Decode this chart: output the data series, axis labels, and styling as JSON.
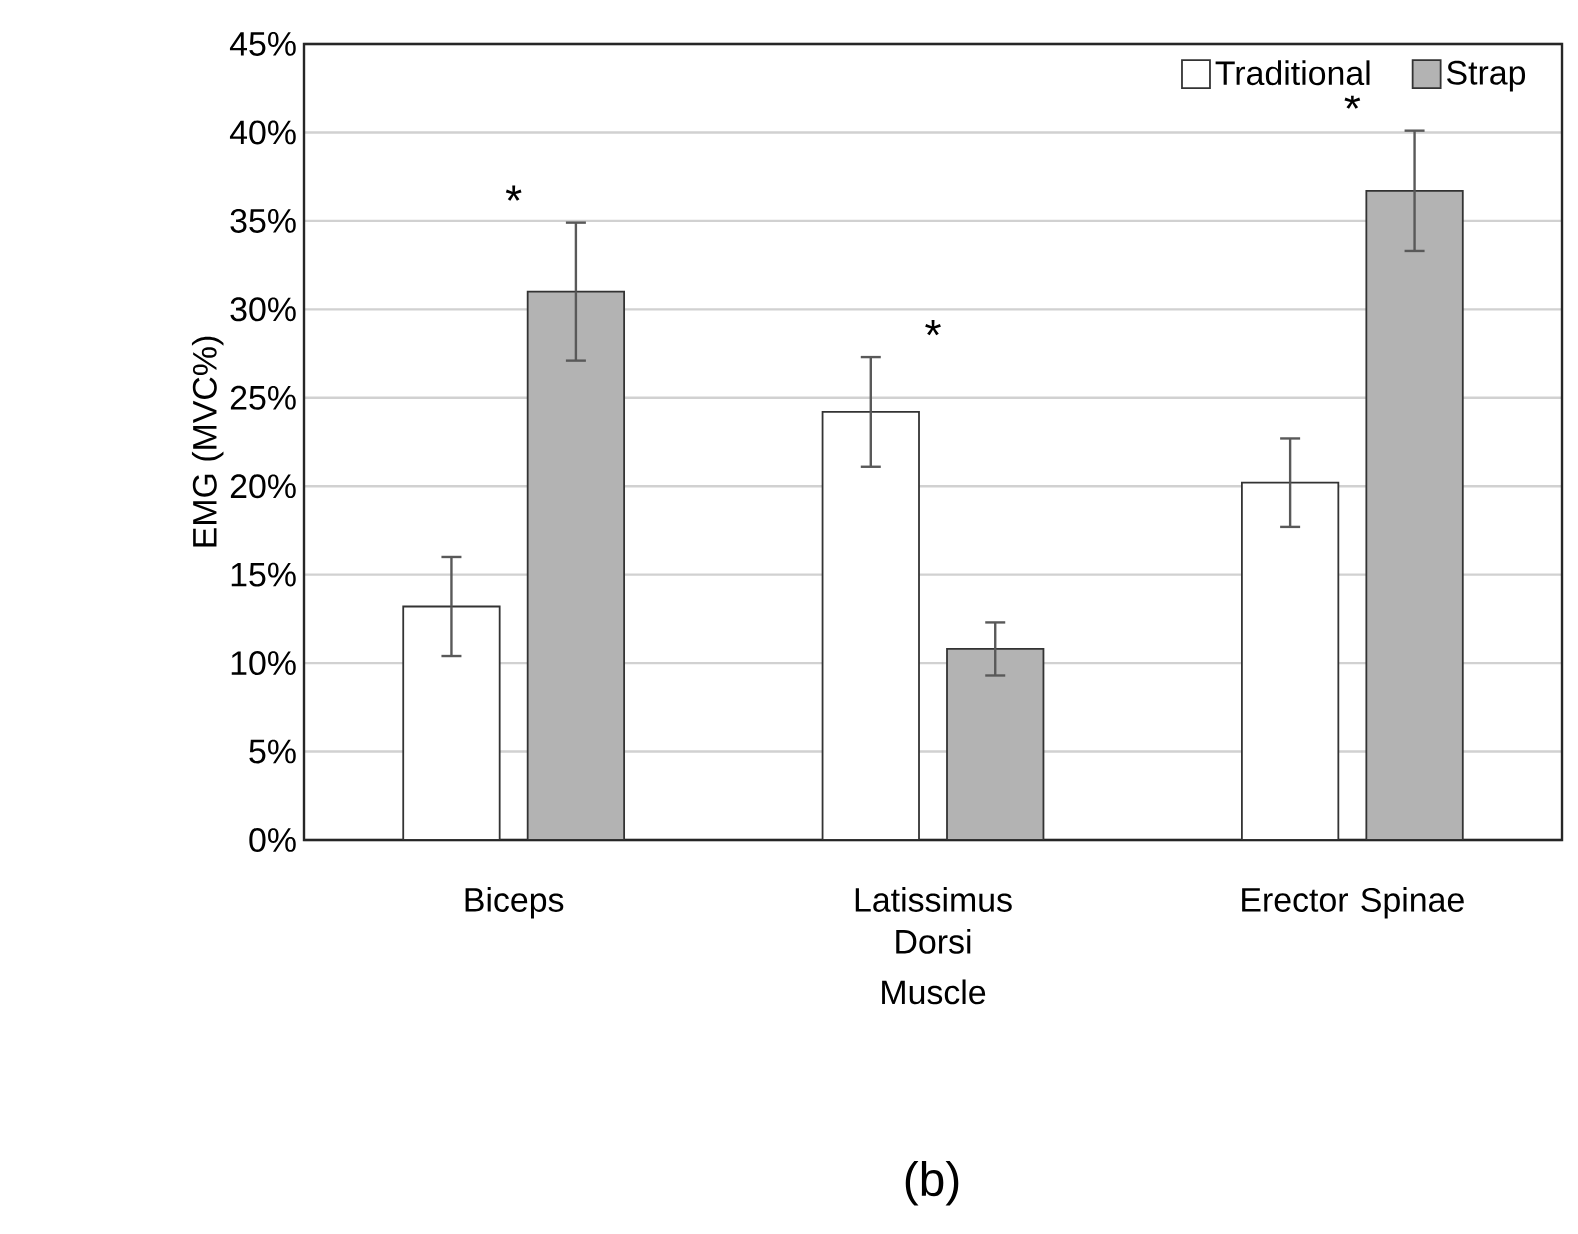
{
  "chart_data": {
    "type": "bar",
    "xlabel": "Muscle",
    "ylabel": "EMG (MVC%)",
    "categories": [
      "Biceps",
      "Latissimus Dorsi",
      "Erector Spinae"
    ],
    "series": [
      {
        "name": "Traditional",
        "color": "#ffffff",
        "values": [
          13.2,
          24.2,
          20.2
        ],
        "errors": [
          2.8,
          3.1,
          2.5
        ]
      },
      {
        "name": "Strap",
        "color": "#b3b3b3",
        "values": [
          31.0,
          10.8,
          36.7
        ],
        "errors": [
          3.9,
          1.5,
          3.4
        ]
      }
    ],
    "ylim": [
      0,
      45
    ],
    "yticks": [
      {
        "value": 0,
        "label": "0%"
      },
      {
        "value": 5,
        "label": "5%"
      },
      {
        "value": 10,
        "label": "10%"
      },
      {
        "value": 15,
        "label": "15%"
      },
      {
        "value": 20,
        "label": "20%"
      },
      {
        "value": 25,
        "label": "25%"
      },
      {
        "value": 30,
        "label": "30%"
      },
      {
        "value": 35,
        "label": "35%"
      },
      {
        "value": 40,
        "label": "40%"
      },
      {
        "value": 45,
        "label": "45%"
      }
    ],
    "grid": "y",
    "legend": "top right",
    "annotations": [
      "*",
      "*",
      "*",
      "(b)"
    ]
  }
}
